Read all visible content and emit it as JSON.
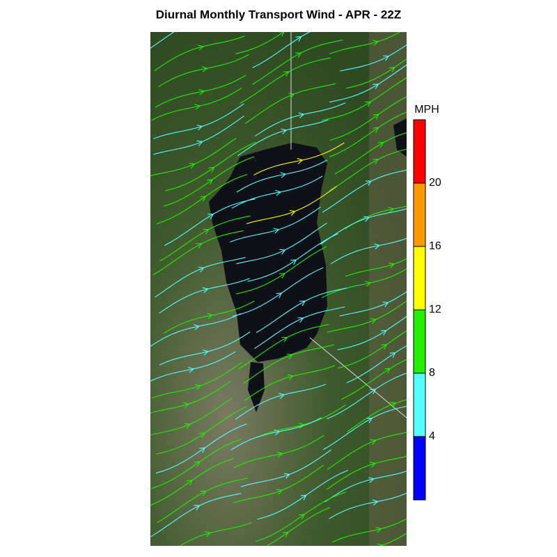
{
  "title": "Diurnal Monthly Transport Wind - APR - 22Z",
  "colorbar": {
    "label": "MPH",
    "ticks": [
      4,
      8,
      12,
      16,
      20
    ],
    "colors": [
      "#0000ff",
      "#55ffff",
      "#22ee00",
      "#ffff00",
      "#ff9900",
      "#ff0000"
    ]
  }
}
